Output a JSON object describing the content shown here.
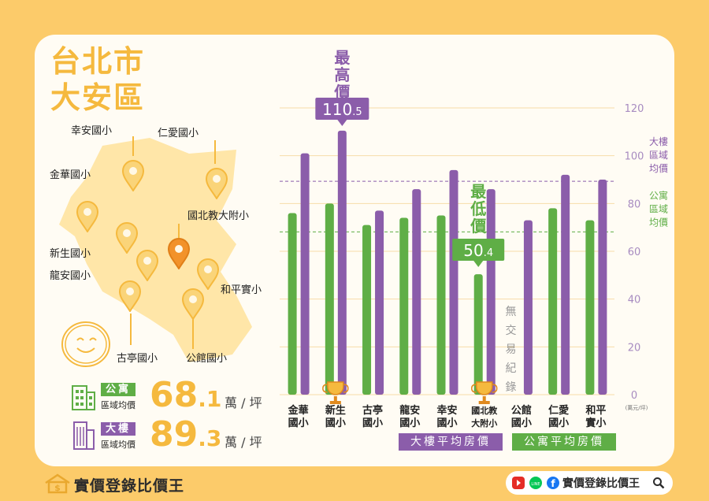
{
  "title": {
    "line1": "台北市",
    "line2": "大安區"
  },
  "schools": {
    "xingan": "幸安國小",
    "renai": "仁愛國小",
    "jinhua": "金華國小",
    "ntue": "國北教大附小",
    "xinsheng": "新生國小",
    "longan": "龍安國小",
    "heping": "和平實小",
    "guting": "古亭國小",
    "gongguan": "公館國小"
  },
  "stats": {
    "apartment": {
      "tag": "公寓",
      "sub": "區域均價",
      "int": "68",
      "dec": ".1",
      "unit": "萬 / 坪"
    },
    "building": {
      "tag": "大樓",
      "sub": "區域均價",
      "int": "89",
      "dec": ".3",
      "unit": "萬 / 坪"
    }
  },
  "colors": {
    "building": "#8B5DAA",
    "apartment": "#5FAE46",
    "accent": "#F5B93E",
    "pin_highlight": "#F2922A",
    "background": "#FCCB6A"
  },
  "chart_data": {
    "type": "bar",
    "categories": [
      [
        "金華",
        "國小"
      ],
      [
        "新生",
        "國小"
      ],
      [
        "古亭",
        "國小"
      ],
      [
        "龍安",
        "國小"
      ],
      [
        "幸安",
        "國小"
      ],
      [
        "國北教",
        "大附小"
      ],
      [
        "公館",
        "國小"
      ],
      [
        "仁愛",
        "國小"
      ],
      [
        "和平",
        "實小"
      ]
    ],
    "series": [
      {
        "name": "公寓平均房價",
        "values": [
          76,
          80,
          71,
          74,
          75,
          50.4,
          null,
          78,
          73
        ]
      },
      {
        "name": "大樓平均房價",
        "values": [
          101,
          110.5,
          77,
          86,
          94,
          86,
          73,
          92,
          90
        ]
      }
    ],
    "ylim": [
      0,
      120
    ],
    "yticks": [
      "0",
      "20",
      "40",
      "60",
      "80",
      "100",
      "120"
    ],
    "yunit": "(萬元/坪)",
    "reference_lines": [
      {
        "label": [
          "大樓",
          "區域",
          "均價"
        ],
        "value": 89.3
      },
      {
        "label": [
          "公寓",
          "區域",
          "均價"
        ],
        "value": 68.1
      }
    ],
    "annotations": {
      "max": {
        "label": "最高價",
        "value_int": "110",
        "value_dec": ".5"
      },
      "min": {
        "label": "最低價",
        "value_int": "50",
        "value_dec": ".4"
      },
      "no_trade": "無交易紀錄"
    },
    "legend": [
      "大樓平均房價",
      "公寓平均房價"
    ],
    "grid": true
  },
  "footer": {
    "brand": "實價登錄比價王",
    "social_text": "實價登錄比價王",
    "icons": [
      "youtube-icon",
      "line-icon",
      "facebook-icon",
      "search-icon"
    ]
  }
}
